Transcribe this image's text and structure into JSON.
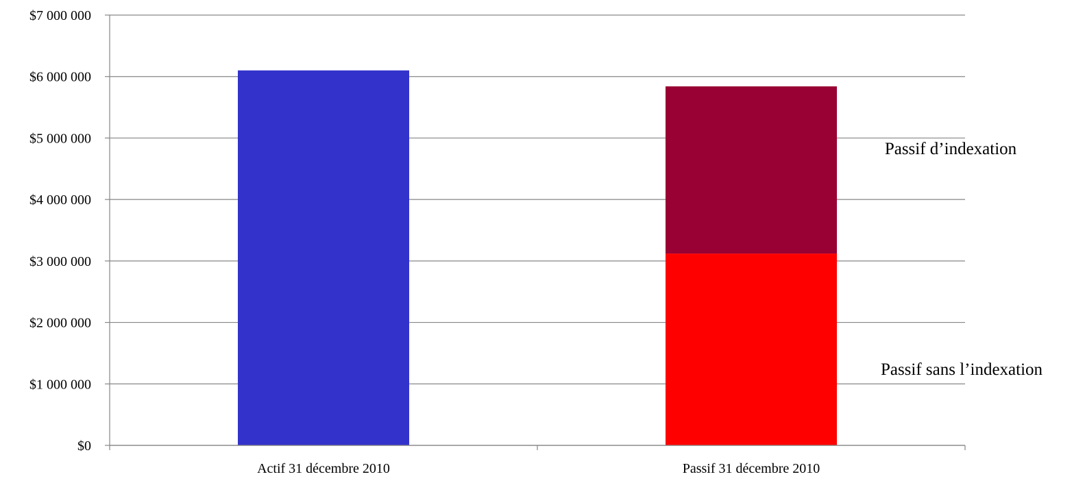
{
  "chart_data": {
    "type": "bar",
    "stacked": true,
    "categories": [
      "Actif 31 décembre 2010",
      "Passif 31 décembre 2010"
    ],
    "series": [
      {
        "key": "actif",
        "color": "#3333cc",
        "values": [
          6100000,
          null
        ]
      },
      {
        "key": "passif_sans",
        "name": "Passif sans l’indexation",
        "color": "#ff0000",
        "values": [
          null,
          3120000
        ]
      },
      {
        "key": "passif_indexation",
        "name": "Passif d’indexation",
        "color": "#990033",
        "values": [
          null,
          2720000
        ]
      }
    ],
    "ylim": [
      0,
      7000000
    ],
    "yticks": [
      0,
      1000000,
      2000000,
      3000000,
      4000000,
      5000000,
      6000000,
      7000000
    ],
    "ytick_labels": [
      "$0",
      "$1 000 000",
      "$2 000 000",
      "$3 000 000",
      "$4 000 000",
      "$5 000 000",
      "$6 000 000",
      "$7 000 000"
    ],
    "grid": true,
    "annotations": [
      {
        "text": "Passif d’indexation",
        "series": "passif_indexation"
      },
      {
        "text": "Passif sans l’indexation",
        "series": "passif_sans"
      }
    ],
    "gridline_color": "#868686",
    "axis_color": "#868686"
  }
}
